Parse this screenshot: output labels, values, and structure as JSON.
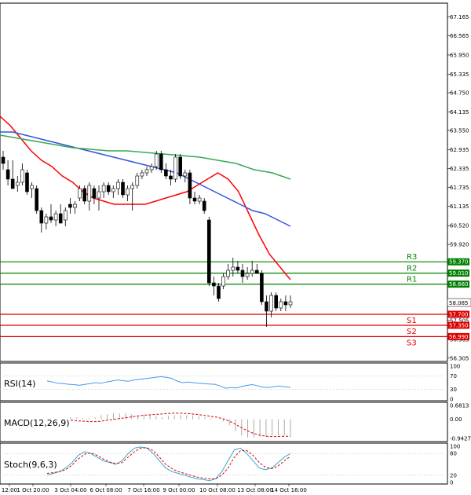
{
  "chart_data": {
    "type": "candlestick",
    "timeframe_labels": [
      "12:00",
      "1 Oct 20:00",
      "3 Oct 04:00",
      "6 Oct 08:00",
      "7 Oct 16:00",
      "9 Oct 00:00",
      "10 Oct 08:00",
      "13 Oct 08:00",
      "14 Oct 16:00"
    ],
    "price_ticks": [
      "67.165",
      "66.565",
      "65.950",
      "65.335",
      "64.750",
      "64.135",
      "63.550",
      "62.935",
      "62.335",
      "61.735",
      "61.135",
      "60.520",
      "59.920",
      "58.085",
      "57.505",
      "56.905",
      "56.305"
    ],
    "price_range": [
      56.3,
      67.5
    ],
    "current_price": "58.085",
    "candles": [
      {
        "o": 62.7,
        "h": 62.9,
        "l": 62.3,
        "c": 62.5
      },
      {
        "o": 62.3,
        "h": 62.6,
        "l": 61.8,
        "c": 62.0
      },
      {
        "o": 62.0,
        "h": 62.6,
        "l": 61.7,
        "c": 61.7
      },
      {
        "o": 61.8,
        "h": 62.1,
        "l": 61.6,
        "c": 61.9
      },
      {
        "o": 61.9,
        "h": 62.5,
        "l": 61.8,
        "c": 62.3
      },
      {
        "o": 62.2,
        "h": 62.3,
        "l": 61.5,
        "c": 61.6
      },
      {
        "o": 61.7,
        "h": 61.9,
        "l": 61.4,
        "c": 61.8
      },
      {
        "o": 61.7,
        "h": 61.8,
        "l": 60.9,
        "c": 61.0
      },
      {
        "o": 61.0,
        "h": 61.1,
        "l": 60.3,
        "c": 60.6
      },
      {
        "o": 60.6,
        "h": 60.9,
        "l": 60.4,
        "c": 60.8
      },
      {
        "o": 60.8,
        "h": 61.2,
        "l": 60.6,
        "c": 60.7
      },
      {
        "o": 60.7,
        "h": 61.0,
        "l": 60.5,
        "c": 60.9
      },
      {
        "o": 60.9,
        "h": 61.2,
        "l": 60.6,
        "c": 60.6
      },
      {
        "o": 60.7,
        "h": 61.1,
        "l": 60.5,
        "c": 61.0
      },
      {
        "o": 61.2,
        "h": 61.4,
        "l": 60.9,
        "c": 61.1
      },
      {
        "o": 61.1,
        "h": 61.3,
        "l": 60.9,
        "c": 61.2
      },
      {
        "o": 61.4,
        "h": 61.8,
        "l": 61.3,
        "c": 61.7
      },
      {
        "o": 61.7,
        "h": 61.8,
        "l": 61.2,
        "c": 61.3
      },
      {
        "o": 61.3,
        "h": 61.9,
        "l": 61.0,
        "c": 61.8
      },
      {
        "o": 61.7,
        "h": 61.8,
        "l": 61.2,
        "c": 61.4
      },
      {
        "o": 61.4,
        "h": 61.8,
        "l": 61.0,
        "c": 61.6
      },
      {
        "o": 61.6,
        "h": 61.9,
        "l": 61.4,
        "c": 61.8
      },
      {
        "o": 61.8,
        "h": 61.9,
        "l": 61.5,
        "c": 61.6
      },
      {
        "o": 61.6,
        "h": 61.8,
        "l": 61.4,
        "c": 61.7
      },
      {
        "o": 61.7,
        "h": 62.0,
        "l": 61.5,
        "c": 61.9
      },
      {
        "o": 61.9,
        "h": 62.0,
        "l": 61.4,
        "c": 61.5
      },
      {
        "o": 61.5,
        "h": 61.8,
        "l": 61.3,
        "c": 61.7
      },
      {
        "o": 61.7,
        "h": 61.9,
        "l": 61.0,
        "c": 61.8
      },
      {
        "o": 61.8,
        "h": 62.2,
        "l": 61.7,
        "c": 62.1
      },
      {
        "o": 62.1,
        "h": 62.3,
        "l": 62.0,
        "c": 62.2
      },
      {
        "o": 62.2,
        "h": 62.4,
        "l": 62.1,
        "c": 62.3
      },
      {
        "o": 62.3,
        "h": 62.5,
        "l": 62.2,
        "c": 62.4
      },
      {
        "o": 62.4,
        "h": 62.9,
        "l": 62.3,
        "c": 62.8
      },
      {
        "o": 62.8,
        "h": 62.9,
        "l": 62.2,
        "c": 62.3
      },
      {
        "o": 62.3,
        "h": 62.5,
        "l": 62.0,
        "c": 62.1
      },
      {
        "o": 62.1,
        "h": 62.3,
        "l": 61.8,
        "c": 62.0
      },
      {
        "o": 62.0,
        "h": 62.8,
        "l": 61.9,
        "c": 62.7
      },
      {
        "o": 62.7,
        "h": 62.8,
        "l": 62.0,
        "c": 62.1
      },
      {
        "o": 62.1,
        "h": 62.3,
        "l": 61.9,
        "c": 62.2
      },
      {
        "o": 62.2,
        "h": 62.3,
        "l": 61.2,
        "c": 61.4
      },
      {
        "o": 61.4,
        "h": 61.6,
        "l": 61.2,
        "c": 61.3
      },
      {
        "o": 61.3,
        "h": 61.5,
        "l": 61.2,
        "c": 61.4
      },
      {
        "o": 61.3,
        "h": 61.4,
        "l": 60.9,
        "c": 61.0
      },
      {
        "o": 60.7,
        "h": 60.8,
        "l": 58.6,
        "c": 58.7
      },
      {
        "o": 58.7,
        "h": 58.9,
        "l": 58.3,
        "c": 58.6
      },
      {
        "o": 58.6,
        "h": 58.7,
        "l": 58.1,
        "c": 58.2
      },
      {
        "o": 58.6,
        "h": 59.0,
        "l": 58.5,
        "c": 58.9
      },
      {
        "o": 58.9,
        "h": 59.3,
        "l": 58.8,
        "c": 59.1
      },
      {
        "o": 59.1,
        "h": 59.5,
        "l": 58.9,
        "c": 59.2
      },
      {
        "o": 59.2,
        "h": 59.4,
        "l": 59.0,
        "c": 59.1
      },
      {
        "o": 59.1,
        "h": 59.3,
        "l": 58.7,
        "c": 58.9
      },
      {
        "o": 58.9,
        "h": 59.2,
        "l": 58.8,
        "c": 59.0
      },
      {
        "o": 59.0,
        "h": 59.4,
        "l": 58.9,
        "c": 59.1
      },
      {
        "o": 59.1,
        "h": 59.3,
        "l": 59.0,
        "c": 59.0
      },
      {
        "o": 59.0,
        "h": 59.1,
        "l": 58.0,
        "c": 58.1
      },
      {
        "o": 58.1,
        "h": 58.3,
        "l": 57.3,
        "c": 57.8
      },
      {
        "o": 57.8,
        "h": 58.4,
        "l": 57.6,
        "c": 58.3
      },
      {
        "o": 58.3,
        "h": 58.4,
        "l": 57.8,
        "c": 57.9
      },
      {
        "o": 57.9,
        "h": 58.2,
        "l": 57.8,
        "c": 58.1
      },
      {
        "o": 58.1,
        "h": 58.3,
        "l": 57.8,
        "c": 58.0
      },
      {
        "o": 58.0,
        "h": 58.3,
        "l": 57.9,
        "c": 58.1
      }
    ],
    "moving_averages": [
      {
        "name": "MA-fast",
        "color": "#ff0000",
        "values": [
          64.0,
          63.7,
          63.3,
          62.9,
          62.6,
          62.4,
          62.1,
          61.9,
          61.6,
          61.4,
          61.3,
          61.2,
          61.2,
          61.2,
          61.2,
          61.3,
          61.4,
          61.5,
          61.6,
          61.8,
          62.0,
          62.2,
          62.0,
          61.6,
          60.9,
          60.2,
          59.6,
          59.2,
          58.8
        ]
      },
      {
        "name": "MA-mid",
        "color": "#3355dd",
        "values": [
          63.5,
          63.5,
          63.4,
          63.3,
          63.2,
          63.1,
          63.0,
          62.9,
          62.8,
          62.7,
          62.6,
          62.5,
          62.4,
          62.3,
          62.2,
          62.0,
          61.8,
          61.6,
          61.4,
          61.2,
          61.0,
          60.9,
          60.7,
          60.5
        ]
      },
      {
        "name": "MA-slow",
        "color": "#33aa55",
        "values": [
          63.4,
          63.3,
          63.2,
          63.1,
          63.0,
          62.95,
          62.9,
          62.9,
          62.85,
          62.8,
          62.75,
          62.7,
          62.6,
          62.5,
          62.3,
          62.2,
          62.0
        ]
      }
    ],
    "levels": [
      {
        "label": "R3",
        "price": "59.370",
        "color": "#008000"
      },
      {
        "label": "R2",
        "price": "59.010",
        "color": "#008000"
      },
      {
        "label": "R1",
        "price": "58.660",
        "color": "#008000"
      },
      {
        "label": "S1",
        "price": "57.700",
        "color": "#dd0000"
      },
      {
        "label": "S2",
        "price": "57.350",
        "color": "#dd0000"
      },
      {
        "label": "S3",
        "price": "56.990",
        "color": "#dd0000"
      }
    ],
    "rsi": {
      "label": "RSI(14)",
      "ticks": [
        "100",
        "70",
        "30",
        "0"
      ],
      "values": [
        55,
        52,
        48,
        47,
        45,
        44,
        42,
        45,
        47,
        50,
        48,
        52,
        55,
        58,
        56,
        54,
        58,
        60,
        62,
        64,
        66,
        68,
        66,
        63,
        55,
        50,
        52,
        50,
        48,
        47,
        46,
        45,
        40,
        33,
        35,
        34,
        38,
        42,
        44,
        40,
        36,
        35,
        38,
        40,
        37,
        36
      ]
    },
    "macd": {
      "label": "MACD(12,26,9)",
      "ticks": [
        "0.6813",
        "0.00",
        "-0.9427"
      ],
      "histogram": [
        0.1,
        0.1,
        0.05,
        0.05,
        0.1,
        0.2,
        0.25,
        0.3,
        0.3,
        0.3,
        0.25,
        0.2,
        0.2,
        0.2,
        0.15,
        0.1,
        0.15,
        0.2,
        0.2,
        0.2,
        0.2,
        0.15,
        0.1,
        0.05,
        0.0,
        -0.1,
        -0.3,
        -0.6,
        -0.8,
        -0.9,
        -0.9,
        -0.85,
        -0.85,
        -0.8,
        -0.8,
        -0.8,
        -0.8
      ],
      "signal": [
        -0.05,
        -0.08,
        -0.1,
        -0.12,
        -0.1,
        -0.05,
        0.0,
        0.05,
        0.1,
        0.15,
        0.2,
        0.22,
        0.25,
        0.28,
        0.3,
        0.3,
        0.28,
        0.25,
        0.2,
        0.15,
        0.1,
        0.0,
        -0.15,
        -0.35,
        -0.55,
        -0.7,
        -0.8,
        -0.85,
        -0.85,
        -0.84,
        -0.84
      ]
    },
    "stoch": {
      "label": "Stoch(9,6,3)",
      "ticks": [
        "100",
        "80",
        "20",
        "0"
      ],
      "k": [
        20,
        25,
        30,
        40,
        55,
        75,
        85,
        80,
        70,
        60,
        55,
        50,
        60,
        80,
        95,
        98,
        95,
        80,
        60,
        40,
        30,
        25,
        20,
        15,
        10,
        8,
        5,
        10,
        30,
        60,
        90,
        95,
        80,
        60,
        40,
        35,
        40,
        55,
        70,
        80
      ],
      "d": [
        25,
        27,
        30,
        35,
        48,
        65,
        78,
        82,
        75,
        65,
        57,
        52,
        55,
        70,
        85,
        95,
        96,
        88,
        70,
        50,
        38,
        30,
        25,
        20,
        15,
        12,
        10,
        10,
        20,
        40,
        70,
        88,
        88,
        75,
        55,
        42,
        38,
        45,
        60,
        72
      ]
    }
  }
}
